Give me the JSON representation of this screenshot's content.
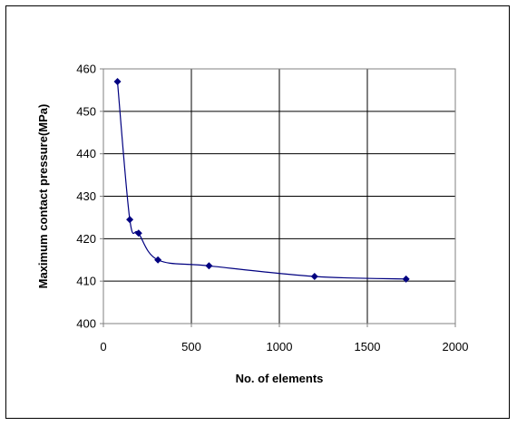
{
  "chart_data": {
    "type": "line",
    "title": "",
    "xlabel": "No. of elements",
    "ylabel": "Maximum contact pressure(MPa)",
    "xlim": [
      0,
      2000
    ],
    "ylim": [
      400,
      460
    ],
    "x_ticks": [
      0,
      500,
      1000,
      1500,
      2000
    ],
    "y_ticks": [
      400,
      410,
      420,
      430,
      440,
      450,
      460
    ],
    "grid": true,
    "legend": "none",
    "series": [
      {
        "x": [
          80,
          150,
          200,
          310,
          600,
          1200,
          1720
        ],
        "y": [
          457,
          424.5,
          421.3,
          415,
          413.6,
          411.1,
          410.5
        ],
        "color": "#000080",
        "marker": "diamond",
        "smooth": true
      }
    ]
  }
}
